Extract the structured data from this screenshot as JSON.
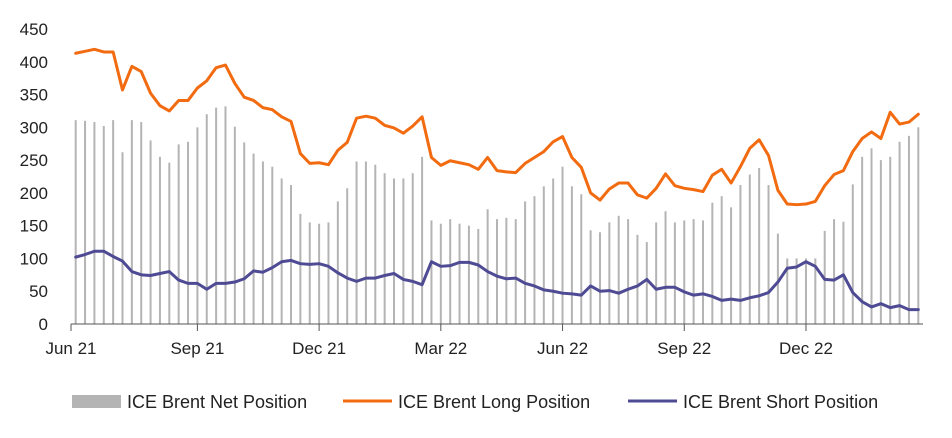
{
  "chart_data": {
    "type": "bar+line",
    "title": "",
    "xlabel": "",
    "ylabel": "",
    "ylim": [
      0,
      450
    ],
    "yticks": [
      0,
      50,
      100,
      150,
      200,
      250,
      300,
      350,
      400,
      450
    ],
    "xtick_labels": [
      "Jun 21",
      "Sep 21",
      "Dec 21",
      "Mar 22",
      "Jun 22",
      "Sep 22",
      "Dec 22"
    ],
    "grid": "horizontal, none visible",
    "legend_position": "bottom",
    "colors": {
      "net": "#b4b4b4",
      "long": "#f26b10",
      "short": "#4e4b94",
      "axis": "#555555"
    },
    "series": [
      {
        "name": "ICE Brent Net Position",
        "kind": "bar",
        "values": [
          311,
          310,
          308,
          302,
          311,
          262,
          311,
          308,
          280,
          255,
          246,
          274,
          278,
          300,
          320,
          330,
          332,
          301,
          277,
          260,
          248,
          240,
          222,
          212,
          168,
          155,
          153,
          155,
          187,
          207,
          248,
          248,
          243,
          230,
          222,
          222,
          230,
          255,
          158,
          153,
          160,
          153,
          150,
          145,
          175,
          160,
          162,
          160,
          187,
          195,
          210,
          222,
          240,
          210,
          198,
          143,
          140,
          155,
          165,
          160,
          136,
          125,
          155,
          172,
          155,
          158,
          160,
          158,
          185,
          195,
          178,
          212,
          228,
          238,
          212,
          138,
          100,
          100,
          100,
          100,
          142,
          160,
          156,
          213,
          255,
          268,
          250,
          255,
          278,
          287,
          300
        ]
      },
      {
        "name": "ICE Brent Long Position",
        "kind": "line",
        "values": [
          413,
          416,
          419,
          415,
          415,
          357,
          393,
          385,
          352,
          333,
          325,
          341,
          341,
          360,
          371,
          391,
          395,
          367,
          346,
          341,
          330,
          327,
          316,
          309,
          260,
          245,
          246,
          243,
          265,
          277,
          314,
          317,
          314,
          303,
          299,
          291,
          302,
          316,
          254,
          242,
          249,
          246,
          243,
          236,
          254,
          234,
          232,
          231,
          245,
          254,
          263,
          278,
          286,
          254,
          239,
          200,
          189,
          206,
          215,
          215,
          197,
          192,
          207,
          229,
          211,
          207,
          205,
          202,
          227,
          236,
          215,
          240,
          268,
          281,
          257,
          204,
          183,
          182,
          183,
          187,
          211,
          228,
          234,
          263,
          283,
          293,
          283,
          323,
          305,
          308,
          320
        ]
      },
      {
        "name": "ICE Brent Short Position",
        "kind": "line",
        "values": [
          102,
          106,
          111,
          111,
          103,
          96,
          80,
          75,
          74,
          77,
          80,
          67,
          62,
          62,
          53,
          62,
          62,
          64,
          69,
          81,
          79,
          86,
          95,
          97,
          92,
          91,
          92,
          88,
          78,
          70,
          65,
          70,
          70,
          74,
          77,
          68,
          65,
          60,
          95,
          88,
          89,
          94,
          94,
          90,
          80,
          73,
          69,
          70,
          62,
          58,
          52,
          50,
          47,
          46,
          44,
          58,
          50,
          51,
          47,
          53,
          58,
          68,
          53,
          56,
          56,
          49,
          44,
          46,
          42,
          36,
          38,
          36,
          40,
          43,
          48,
          64,
          85,
          87,
          95,
          88,
          68,
          67,
          75,
          48,
          34,
          26,
          31,
          25,
          28,
          22,
          22
        ]
      }
    ]
  }
}
